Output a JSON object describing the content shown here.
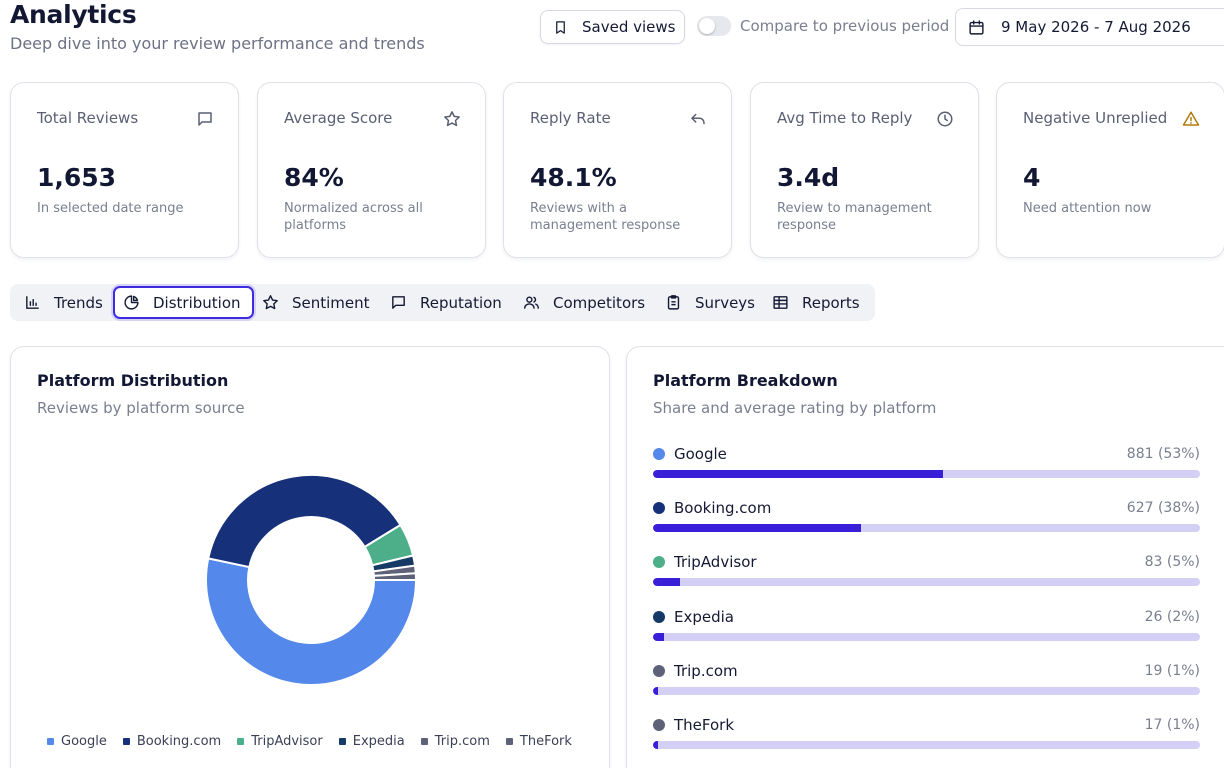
{
  "header": {
    "title": "Analytics",
    "subtitle": "Deep dive into your review performance and trends",
    "saved_views_label": "Saved views",
    "compare_label": "Compare to previous period",
    "compare_enabled": false,
    "date_range": "9 May 2026 - 7 Aug 2026"
  },
  "kpis": [
    {
      "label": "Total Reviews",
      "value": "1,653",
      "desc": "In selected date range",
      "icon": "message-square-icon"
    },
    {
      "label": "Average Score",
      "value": "84%",
      "desc": "Normalized across all platforms",
      "icon": "star-icon"
    },
    {
      "label": "Reply Rate",
      "value": "48.1%",
      "desc": "Reviews with a management response",
      "icon": "reply-arrow-icon"
    },
    {
      "label": "Avg Time to Reply",
      "value": "3.4d",
      "desc": "Review to management response",
      "icon": "clock-icon"
    },
    {
      "label": "Negative Unreplied",
      "value": "4",
      "desc": "Need attention now",
      "icon": "warning-triangle-icon"
    }
  ],
  "tabs": [
    {
      "label": "Trends",
      "icon": "bar-chart-icon"
    },
    {
      "label": "Distribution",
      "icon": "pie-chart-icon",
      "active": true
    },
    {
      "label": "Sentiment",
      "icon": "star-icon"
    },
    {
      "label": "Reputation",
      "icon": "message-square-icon"
    },
    {
      "label": "Competitors",
      "icon": "users-icon"
    },
    {
      "label": "Surveys",
      "icon": "clipboard-icon"
    },
    {
      "label": "Reports",
      "icon": "table-icon"
    }
  ],
  "distribution": {
    "title": "Platform Distribution",
    "subtitle": "Reviews by platform source"
  },
  "breakdown": {
    "title": "Platform Breakdown",
    "subtitle": "Share and average rating by platform",
    "rows": [
      {
        "name": "Google",
        "count_text": "881 (53%)",
        "share": 0.53
      },
      {
        "name": "Booking.com",
        "count_text": "627 (38%)",
        "share": 0.38
      },
      {
        "name": "TripAdvisor",
        "count_text": "83 (5%)",
        "share": 0.05
      },
      {
        "name": "Expedia",
        "count_text": "26 (2%)",
        "share": 0.02
      },
      {
        "name": "Trip.com",
        "count_text": "19 (1%)",
        "share": 0.01
      },
      {
        "name": "TheFork",
        "count_text": "17 (1%)",
        "share": 0.01
      }
    ]
  },
  "chart_data": {
    "type": "pie",
    "categories": [
      "Google",
      "Booking.com",
      "TripAdvisor",
      "Expedia",
      "Trip.com",
      "TheFork"
    ],
    "values": [
      881,
      627,
      83,
      26,
      19,
      17
    ],
    "colors": [
      "#5488ea",
      "#17307a",
      "#4caf8a",
      "#163a66",
      "#5e6278",
      "#5e6278"
    ],
    "donut": true,
    "legend": "bottom"
  },
  "colors": {
    "accent": "#3a1fd9",
    "bar_track": "#d3cff5",
    "warning": "#b07a0a"
  }
}
